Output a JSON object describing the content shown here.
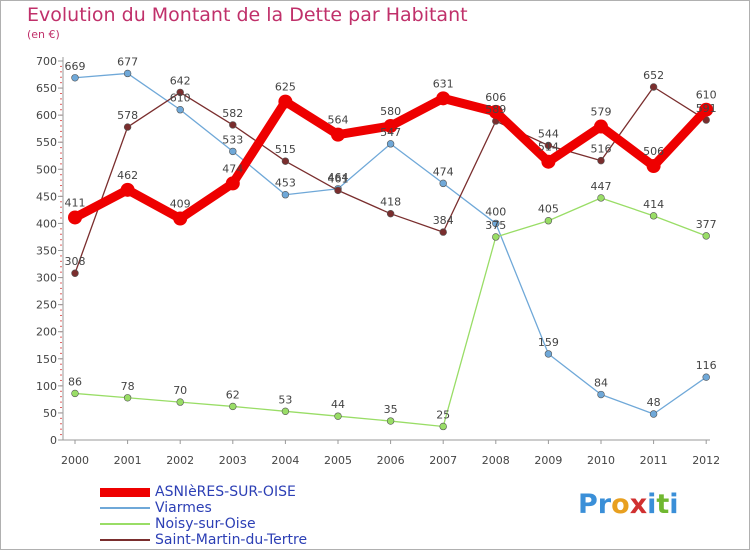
{
  "header": {
    "title": "Evolution du Montant de la Dette par Habitant",
    "subtitle": "(en €)"
  },
  "logo": {
    "text": "Proxiti",
    "letters": [
      {
        "ch": "P",
        "color": "#3a8fd8"
      },
      {
        "ch": "r",
        "color": "#3a8fd8"
      },
      {
        "ch": "o",
        "color": "#e8a020"
      },
      {
        "ch": "x",
        "color": "#d03030"
      },
      {
        "ch": "i",
        "color": "#3a8fd8"
      },
      {
        "ch": "t",
        "color": "#70b830"
      },
      {
        "ch": "i",
        "color": "#3a8fd8"
      }
    ]
  },
  "chart_data": {
    "type": "line",
    "title": "Evolution du Montant de la Dette par Habitant",
    "subtitle": "(en €)",
    "xlabel": "",
    "ylabel": "",
    "categories": [
      "2000",
      "2001",
      "2002",
      "2003",
      "2004",
      "2005",
      "2006",
      "2007",
      "2008",
      "2009",
      "2010",
      "2011",
      "2012"
    ],
    "ylim": [
      0,
      700
    ],
    "yticks": [
      0,
      50,
      100,
      150,
      200,
      250,
      300,
      350,
      400,
      450,
      500,
      550,
      600,
      650,
      700
    ],
    "grid": false,
    "legend_position": "bottom-left",
    "series": [
      {
        "name": "ASNIèRES-SUR-OISE",
        "color": "#ee0000",
        "emphasis": true,
        "values": [
          411,
          462,
          409,
          474,
          625,
          564,
          580,
          631,
          606,
          514,
          579,
          506,
          610
        ],
        "labels": [
          "411",
          "462",
          "409",
          "474",
          "625",
          "564",
          "580",
          "631",
          "606",
          "514",
          "579",
          "506",
          "610"
        ]
      },
      {
        "name": "Viarmes",
        "color": "#6fa8d8",
        "emphasis": false,
        "values": [
          669,
          677,
          610,
          533,
          453,
          464,
          547,
          474,
          400,
          159,
          84,
          48,
          116
        ],
        "labels": [
          "669",
          "677",
          "610",
          "533",
          "453",
          "464",
          "547",
          "474",
          "400",
          "159",
          "84",
          "48",
          "116"
        ]
      },
      {
        "name": "Noisy-sur-Oise",
        "color": "#99dd66",
        "emphasis": false,
        "values": [
          86,
          78,
          70,
          62,
          53,
          44,
          35,
          25,
          375,
          405,
          447,
          414,
          377
        ],
        "labels": [
          "86",
          "78",
          "70",
          "62",
          "53",
          "44",
          "35",
          "25",
          "375",
          "405",
          "447",
          "414",
          "377"
        ]
      },
      {
        "name": "Saint-Martin-du-Tertre",
        "color": "#7a2e2e",
        "emphasis": false,
        "values": [
          308,
          578,
          642,
          582,
          515,
          461,
          418,
          384,
          589,
          544,
          516,
          652,
          591
        ],
        "labels": [
          "308",
          "578",
          "642",
          "582",
          "515",
          "461",
          "418",
          "384",
          "589",
          "544",
          "516",
          "652",
          "591"
        ]
      }
    ]
  }
}
